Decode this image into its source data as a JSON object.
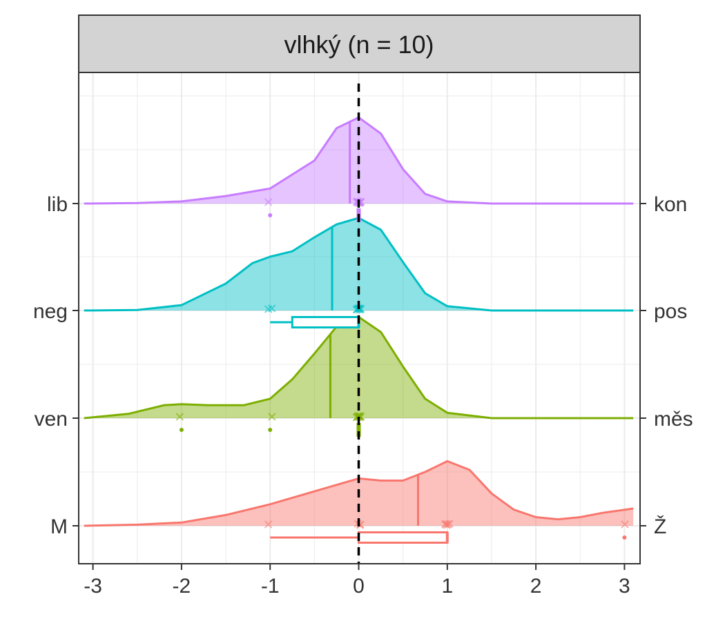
{
  "chart_data": {
    "type": "ridgeline",
    "title": "vlhký (n = 10)",
    "xlabel": "",
    "ylabel": "",
    "xlim": [
      -3.1,
      3.1
    ],
    "x_ticks": [
      -3,
      -2,
      -1,
      0,
      1,
      2,
      3
    ],
    "x_tick_labels": [
      "-3",
      "-2",
      "-1",
      "0",
      "1",
      "2",
      "3"
    ],
    "reference_line_x": 0,
    "grid": true,
    "series": [
      {
        "left_label": "lib",
        "right_label": "kon",
        "color": "#C77CFF",
        "median": -0.1,
        "points": [
          -1,
          0,
          0,
          0,
          0,
          0,
          0,
          0,
          0,
          0
        ],
        "boxplot": {
          "q1": 0,
          "median": 0,
          "q3": 0,
          "whisker_low": 0,
          "whisker_high": 0
        },
        "outliers": [
          -1
        ],
        "density": [
          [
            -3.1,
            0
          ],
          [
            -2.5,
            0.005
          ],
          [
            -2,
            0.02
          ],
          [
            -1.5,
            0.07
          ],
          [
            -1,
            0.14
          ],
          [
            -0.5,
            0.4
          ],
          [
            -0.25,
            0.7
          ],
          [
            0,
            0.8
          ],
          [
            0.25,
            0.65
          ],
          [
            0.5,
            0.32
          ],
          [
            0.75,
            0.09
          ],
          [
            1,
            0.02
          ],
          [
            1.5,
            0
          ],
          [
            3.1,
            0
          ]
        ]
      },
      {
        "left_label": "neg",
        "right_label": "pos",
        "color": "#00BFC4",
        "median": -0.3,
        "points": [
          -1,
          -1,
          0,
          0,
          0,
          0,
          0,
          0,
          0,
          0
        ],
        "boxplot": {
          "q1": -0.75,
          "median": 0,
          "q3": 0,
          "whisker_low": -1,
          "whisker_high": 0
        },
        "outliers": [],
        "density": [
          [
            -3.1,
            0
          ],
          [
            -2.5,
            0.005
          ],
          [
            -2,
            0.05
          ],
          [
            -1.5,
            0.25
          ],
          [
            -1.2,
            0.44
          ],
          [
            -1,
            0.5
          ],
          [
            -0.75,
            0.55
          ],
          [
            -0.5,
            0.68
          ],
          [
            -0.25,
            0.8
          ],
          [
            0,
            0.86
          ],
          [
            0.25,
            0.75
          ],
          [
            0.5,
            0.45
          ],
          [
            0.75,
            0.16
          ],
          [
            1,
            0.04
          ],
          [
            1.5,
            0
          ],
          [
            3.1,
            0
          ]
        ]
      },
      {
        "left_label": "ven",
        "right_label": "měs",
        "color": "#7CAE00",
        "median": -0.32,
        "points": [
          -2,
          -1,
          0,
          0,
          0,
          0,
          0,
          0,
          0,
          0
        ],
        "boxplot": {
          "q1": 0,
          "median": 0,
          "q3": 0,
          "whisker_low": 0,
          "whisker_high": 0
        },
        "outliers": [
          -2,
          -1
        ],
        "density": [
          [
            -3.1,
            0
          ],
          [
            -2.6,
            0.04
          ],
          [
            -2.2,
            0.12
          ],
          [
            -2,
            0.13
          ],
          [
            -1.7,
            0.12
          ],
          [
            -1.3,
            0.12
          ],
          [
            -1,
            0.18
          ],
          [
            -0.75,
            0.36
          ],
          [
            -0.5,
            0.6
          ],
          [
            -0.25,
            0.85
          ],
          [
            0,
            0.94
          ],
          [
            0.25,
            0.8
          ],
          [
            0.5,
            0.48
          ],
          [
            0.75,
            0.18
          ],
          [
            1,
            0.05
          ],
          [
            1.5,
            0
          ],
          [
            3.1,
            0
          ]
        ]
      },
      {
        "left_label": "M",
        "right_label": "Ž",
        "color": "#F8766D",
        "median": 0.67,
        "points": [
          -1,
          0,
          0,
          0,
          1,
          1,
          1,
          1,
          1,
          3
        ],
        "boxplot": {
          "q1": 0,
          "median": 1,
          "q3": 1,
          "whisker_low": -1,
          "whisker_high": 1
        },
        "outliers": [
          3
        ],
        "density": [
          [
            -3.1,
            0
          ],
          [
            -2.5,
            0.01
          ],
          [
            -2,
            0.03
          ],
          [
            -1.5,
            0.1
          ],
          [
            -1,
            0.2
          ],
          [
            -0.5,
            0.32
          ],
          [
            0,
            0.44
          ],
          [
            0.25,
            0.42
          ],
          [
            0.5,
            0.42
          ],
          [
            0.75,
            0.5
          ],
          [
            1,
            0.6
          ],
          [
            1.25,
            0.52
          ],
          [
            1.5,
            0.3
          ],
          [
            1.75,
            0.15
          ],
          [
            2,
            0.08
          ],
          [
            2.25,
            0.06
          ],
          [
            2.5,
            0.08
          ],
          [
            2.75,
            0.12
          ],
          [
            3.1,
            0.16
          ]
        ]
      }
    ]
  }
}
